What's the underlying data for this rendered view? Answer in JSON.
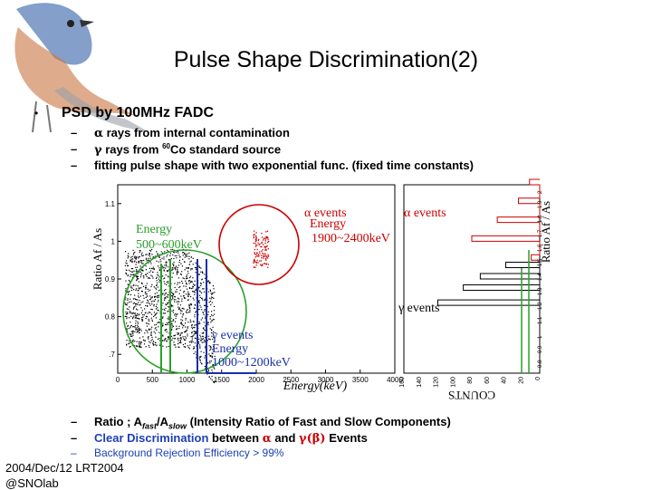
{
  "slide": {
    "title": "Pulse Shape Discrimination(2)",
    "bullet": "PSD by 100MHz FADC",
    "subs": [
      {
        "sym": "α",
        "text": " rays from internal contamination"
      },
      {
        "sym": "γ",
        "text": " rays from ",
        "sup": "60",
        "after": "Co standard source"
      },
      {
        "text": "fitting pulse shape with two exponential func. (fixed time constants)"
      }
    ],
    "bottom": {
      "ratio_prefix": "Ratio ; A",
      "fast": "fast",
      "slash": "/A",
      "slow": "slow",
      "ratio_suffix": " (Intensity Ratio of Fast and Slow Components)",
      "clear_a": "Clear Discrimination",
      "clear_b": " between ",
      "alpha": "α",
      "and": " and ",
      "gammabeta": "γ(β)",
      "events": " Events",
      "background": "Background Rejection Efficiency > 99%"
    },
    "footer": [
      "2004/Dec/12 LRT2004",
      "@SNOlab"
    ]
  },
  "chart_data": [
    {
      "type": "scatter",
      "title": "",
      "xlabel": "Energy(keV)",
      "ylabel": "Ratio Af / As",
      "xlim": [
        0,
        4000
      ],
      "ylim": [
        0.65,
        1.15
      ],
      "x_ticks": [
        0,
        500,
        1000,
        1500,
        2000,
        2500,
        3000,
        3500,
        4000
      ],
      "y_ticks": [
        0.7,
        0.8,
        0.9,
        1,
        1.1
      ],
      "y_tick_labels": [
        ".7",
        "0.8",
        "0.9",
        "1",
        "1.1"
      ],
      "series": [
        {
          "name": "γ events",
          "points": [
            [
              300,
              0.93
            ],
            [
              700,
              0.85
            ],
            [
              1100,
              0.88
            ],
            [
              600,
              0.78
            ],
            [
              1200,
              0.95
            ],
            [
              400,
              0.8
            ],
            [
              900,
              0.9
            ]
          ]
        },
        {
          "name": "α events",
          "points": [
            [
              2050,
              1.0
            ],
            [
              2100,
              0.98
            ],
            [
              2000,
              1.02
            ],
            [
              2150,
              0.99
            ],
            [
              2080,
              0.96
            ]
          ]
        }
      ],
      "annotations": [
        {
          "text": "Energy",
          "sub": "500~600keV",
          "color": "#2aa02a"
        },
        {
          "text": "α events",
          "sub_label": "Energy",
          "sub": "1900~2400keV",
          "color": "#cc0000"
        },
        {
          "text": "γ events",
          "sub_label": "Energy",
          "sub": "1000~1200keV",
          "color": "#1a2fa8"
        }
      ]
    },
    {
      "type": "bar",
      "orientation": "horizontal",
      "xlabel": "COUNTS",
      "ylabel": "Ratio Af / As",
      "x_ticks": [
        0,
        20,
        40,
        60,
        80,
        100,
        120,
        140,
        160
      ],
      "y_tick_labels": [
        "0.8",
        "0.9",
        "1",
        "1.1",
        "1.2",
        "1.3",
        "1.4",
        "1.5",
        "1.6",
        "1.7",
        "1.8",
        "1.9",
        "2"
      ],
      "series": [
        {
          "name": "α events",
          "color": "#cc0000",
          "values": [
            [
              0.95,
              10
            ],
            [
              1.0,
              80
            ],
            [
              1.05,
              50
            ],
            [
              1.1,
              25
            ],
            [
              1.15,
              12
            ]
          ]
        },
        {
          "name": "γ events",
          "color": "#000000",
          "values": [
            [
              0.83,
              120
            ],
            [
              0.87,
              90
            ],
            [
              0.9,
              70
            ],
            [
              0.93,
              40
            ]
          ]
        }
      ],
      "legend": [
        "α events",
        "γ events"
      ]
    }
  ]
}
